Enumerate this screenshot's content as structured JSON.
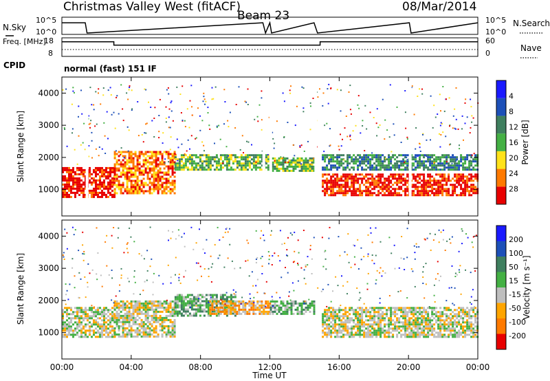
{
  "header": {
    "station": "Christmas Valley West (fitACF)",
    "beam": "Beam 23",
    "date": "08/Mar/2014"
  },
  "chart_data": [
    {
      "type": "line",
      "panel": "noise",
      "left_label": "N.Sky",
      "right_label": "N.Search",
      "left_ticks": [
        "10^5",
        "10^0"
      ],
      "right_ticks": [
        "10^5",
        "10^0"
      ],
      "x_hours": [
        0,
        1.35,
        1.45,
        11.6,
        11.75,
        12.0,
        12.1,
        14.55,
        14.75,
        20.05,
        20.15,
        24
      ],
      "y_log": [
        1.1,
        1.1,
        0.0,
        1.1,
        0.0,
        1.1,
        0.0,
        1.1,
        0.0,
        1.1,
        0.0,
        1.1
      ]
    },
    {
      "type": "line",
      "panel": "freq_nave",
      "left_label": "Freq. [MHz]",
      "right_label": "Nave",
      "left_ticks": [
        "18",
        "8"
      ],
      "right_ticks": [
        "60",
        "0"
      ],
      "freq_segments": [
        {
          "x": [
            0,
            3.0
          ],
          "y": 16.3
        },
        {
          "x": [
            3.0,
            14.9
          ],
          "y": 14.1
        },
        {
          "x": [
            14.9,
            24
          ],
          "y": 16.3
        }
      ],
      "cpid_label": "CPID",
      "cpid_text": "normal (fast) 151 IF"
    },
    {
      "type": "heatmap",
      "panel": "power",
      "ylabel": "Slant Range [km]",
      "y_ticks": [
        1000,
        2000,
        3000,
        4000
      ],
      "ylim": [
        180,
        4500
      ],
      "colorbar_label": "Power [dB]",
      "colorbar_ticks": [
        "4",
        "8",
        "12",
        "16",
        "20",
        "24",
        "28"
      ],
      "colors": [
        "#1a1aff",
        "#1d50b8",
        "#3f7f5f",
        "#44b044",
        "#ffe21a",
        "#ff7a00",
        "#e80000"
      ],
      "gaps_hours": [
        1.45,
        11.65,
        12.05,
        14.65,
        20.1
      ],
      "echo_bands": [
        {
          "x": [
            0,
            3.0
          ],
          "y": [
            800,
            1700
          ],
          "level": 6
        },
        {
          "x": [
            3.0,
            6.5
          ],
          "y": [
            900,
            2200
          ],
          "level": 5
        },
        {
          "x": [
            6.5,
            12.0
          ],
          "y": [
            1600,
            2100
          ],
          "level": 3
        },
        {
          "x": [
            12.0,
            14.6
          ],
          "y": [
            1600,
            2000
          ],
          "level": 3
        },
        {
          "x": [
            15.0,
            24
          ],
          "y": [
            800,
            1500
          ],
          "level": 6
        },
        {
          "x": [
            15.0,
            24
          ],
          "y": [
            1600,
            2100
          ],
          "level": 2
        }
      ]
    },
    {
      "type": "heatmap",
      "panel": "velocity",
      "ylabel": "Slant Range [km]",
      "y_ticks": [
        1000,
        2000,
        3000,
        4000
      ],
      "ylim": [
        180,
        4500
      ],
      "colorbar_label": "Velocity [m s⁻¹]",
      "colorbar_ticks": [
        "200",
        "100",
        "50",
        "15",
        "-15",
        "-50",
        "-100",
        "-200"
      ],
      "colors": [
        "#1a1aff",
        "#1d50b8",
        "#3f7f5f",
        "#44b044",
        "#bebebe",
        "#ffa500",
        "#ff7a00",
        "#e80000"
      ],
      "echo_bands": [
        {
          "x": [
            0,
            3.0
          ],
          "y": [
            900,
            1800
          ],
          "level": 4
        },
        {
          "x": [
            3.0,
            6.5
          ],
          "y": [
            900,
            2000
          ],
          "level": 4
        },
        {
          "x": [
            6.5,
            10.0
          ],
          "y": [
            1500,
            2200
          ],
          "level": 3
        },
        {
          "x": [
            8.5,
            12.0
          ],
          "y": [
            1600,
            2000
          ],
          "level": 5
        },
        {
          "x": [
            12.0,
            14.6
          ],
          "y": [
            1600,
            2000
          ],
          "level": 3
        },
        {
          "x": [
            15.0,
            24
          ],
          "y": [
            900,
            1800
          ],
          "level": 4
        }
      ],
      "x_ticks": [
        "00:00",
        "04:00",
        "08:00",
        "12:00",
        "16:00",
        "20:00",
        "00:00"
      ],
      "xlabel": "Time UT"
    }
  ]
}
